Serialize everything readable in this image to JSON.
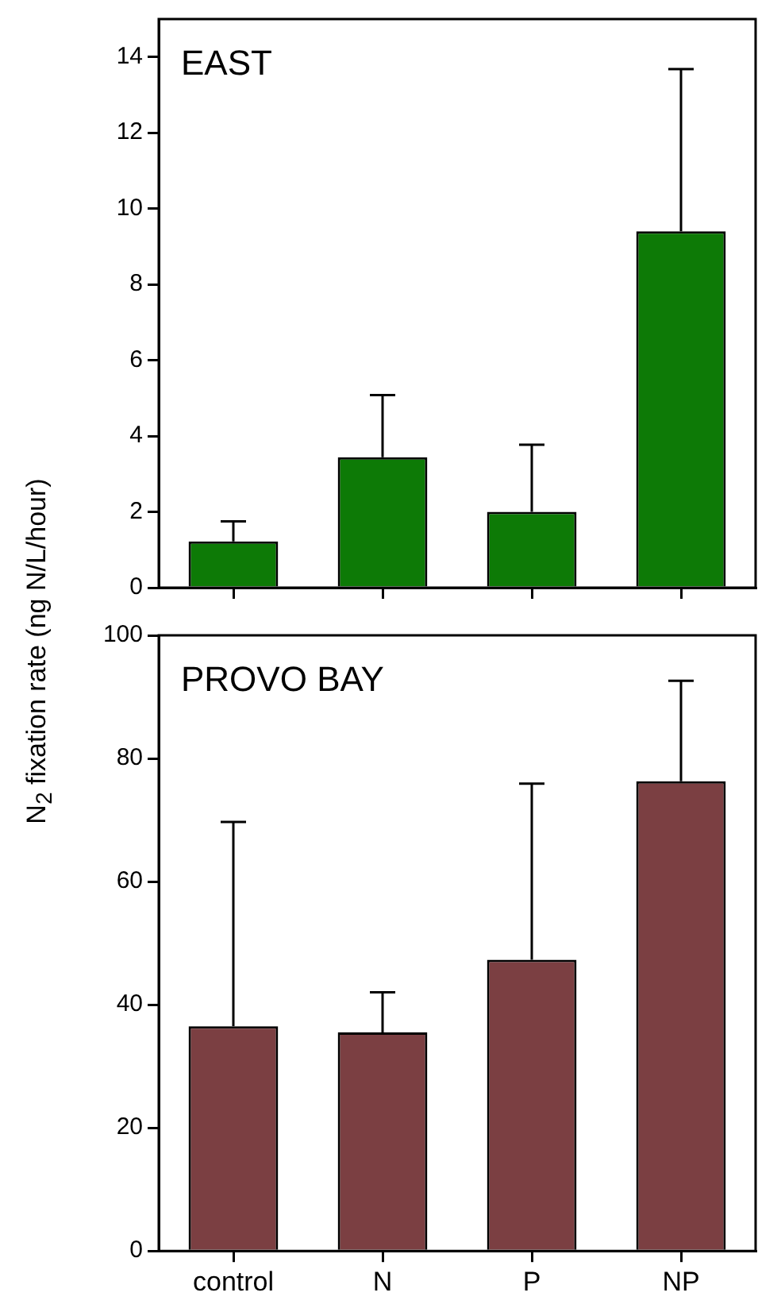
{
  "chart_data": [
    {
      "type": "bar",
      "title": "EAST",
      "ylabel": "N$_{2}$ fixation rate (ng N/L/hour)",
      "categories": [
        null,
        null,
        null,
        null
      ],
      "series": [
        {
          "color": "#0d7a06",
          "values": [
            1.22,
            3.44,
            2.0,
            9.4
          ],
          "errors": [
            [
              1.22,
              1.75
            ],
            [
              3.44,
              5.08
            ],
            [
              2.0,
              3.77
            ],
            [
              9.4,
              13.68
            ]
          ]
        }
      ],
      "ylim": [
        0,
        15
      ],
      "yticks": [
        0,
        2,
        4,
        6,
        8,
        10,
        12,
        14
      ],
      "tick_labels": "y",
      "grid": false,
      "legend": false
    },
    {
      "type": "bar",
      "title": "PROVO BAY",
      "categories": [
        "control",
        "N",
        "P",
        "NP"
      ],
      "series": [
        {
          "color": "#7b3f42",
          "values": [
            36.5,
            35.5,
            47.3,
            76.3
          ],
          "errors": [
            [
              36.5,
              69.7
            ],
            [
              35.5,
              42.0
            ],
            [
              47.3,
              75.9
            ],
            [
              76.3,
              92.6
            ]
          ]
        }
      ],
      "ylim": [
        0,
        100
      ],
      "yticks": [
        0,
        20,
        40,
        60,
        80,
        100
      ],
      "grid": false,
      "legend": false
    }
  ]
}
